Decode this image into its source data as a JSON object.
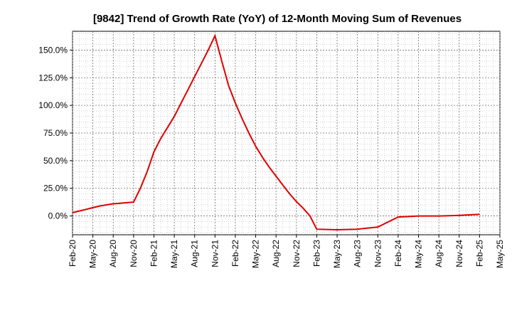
{
  "chart_data": {
    "type": "line",
    "title": "[9842]  Trend of Growth Rate (YoY) of 12-Month Moving Sum of Revenues",
    "xlabel": "",
    "ylabel": "",
    "grid": true,
    "line_color": "#e00000",
    "x_tick_labels": [
      "Feb-20",
      "May-20",
      "Aug-20",
      "Nov-20",
      "Feb-21",
      "May-21",
      "Aug-21",
      "Nov-21",
      "Feb-22",
      "May-22",
      "Aug-22",
      "Nov-22",
      "Feb-23",
      "May-23",
      "Aug-23",
      "Nov-23",
      "Feb-24",
      "May-24",
      "Aug-24",
      "Nov-24",
      "Feb-25",
      "May-25"
    ],
    "y_tick_labels": [
      "0.0%",
      "25.0%",
      "50.0%",
      "75.0%",
      "100.0%",
      "125.0%",
      "150.0%"
    ],
    "y_ticks": [
      0,
      25,
      50,
      75,
      100,
      125,
      150
    ],
    "ylim": [
      -17,
      167
    ],
    "xlim": [
      "Feb-20",
      "May-25"
    ],
    "series": [
      {
        "x": [
          "Feb-20",
          "Mar-20",
          "Apr-20",
          "May-20",
          "Jun-20",
          "Jul-20",
          "Aug-20",
          "Sep-20",
          "Oct-20",
          "Nov-20",
          "Dec-20",
          "Jan-21",
          "Feb-21",
          "Mar-21",
          "Apr-21",
          "May-21",
          "Jun-21",
          "Jul-21",
          "Aug-21",
          "Sep-21",
          "Oct-21",
          "Nov-21",
          "Dec-21",
          "Jan-22",
          "Feb-22",
          "Mar-22",
          "Apr-22",
          "May-22",
          "Jun-22",
          "Jul-22",
          "Aug-22",
          "Sep-22",
          "Oct-22",
          "Nov-22",
          "Dec-22",
          "Jan-23",
          "Feb-23",
          "May-23",
          "Aug-23",
          "Nov-23",
          "Feb-24",
          "May-24",
          "Aug-24",
          "Nov-24",
          "Feb-25"
        ],
        "values": [
          3,
          4.5,
          6,
          7.5,
          9,
          10,
          11,
          11.5,
          12,
          12.5,
          25,
          40,
          58,
          70,
          80,
          90,
          102,
          114,
          126,
          138,
          150,
          163,
          140,
          118,
          102,
          88,
          75,
          63,
          53,
          44,
          36,
          28,
          20,
          13,
          7,
          0,
          -12,
          -12.5,
          -12,
          -10,
          -1,
          0,
          0,
          0.5,
          1.5
        ]
      }
    ]
  }
}
